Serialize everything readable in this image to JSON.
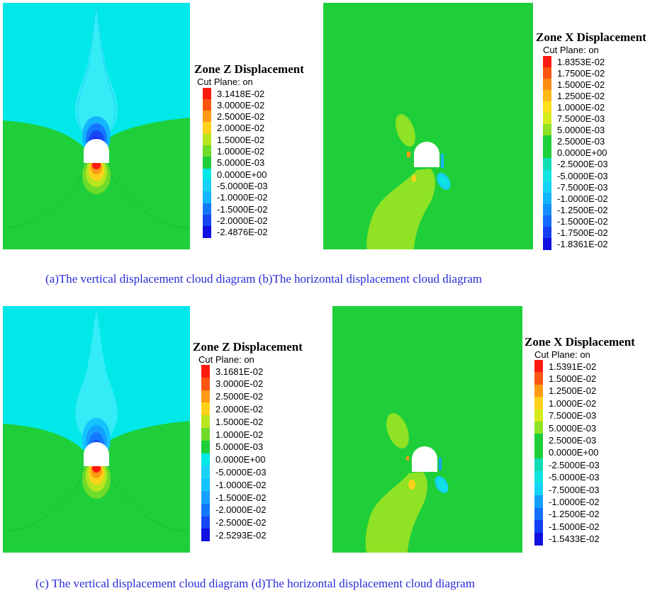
{
  "colors": {
    "cyan_bg": "#00e8e8",
    "light_cyan": "#33ecf6",
    "green": "#1fcf3a",
    "lime": "#7fdf26",
    "blue_mid": "#1e90ff",
    "blue_dark": "#1030e6",
    "red": "#ff1a10",
    "orange": "#ff7a10",
    "yellow": "#f5e000"
  },
  "panels": {
    "a": {
      "legend_title": "Zone Z Displacement",
      "legend_sub": "Cut Plane: on",
      "legend": [
        {
          "label": "3.1418E-02",
          "color": "#ff1a10"
        },
        {
          "label": "3.0000E-02",
          "color": "#ff5512"
        },
        {
          "label": "2.5000E-02",
          "color": "#ff9a14"
        },
        {
          "label": "2.0000E-02",
          "color": "#ffd11a"
        },
        {
          "label": "1.5000E-02",
          "color": "#b9e51e"
        },
        {
          "label": "1.0000E-02",
          "color": "#6fdb2a"
        },
        {
          "label": "5.0000E-03",
          "color": "#1fcf3a"
        },
        {
          "label": "0.0000E+00",
          "color": "#00e8e8"
        },
        {
          "label": "-5.0000E-03",
          "color": "#1ad2f5"
        },
        {
          "label": "-1.0000E-02",
          "color": "#14b4ff"
        },
        {
          "label": "-1.5000E-02",
          "color": "#1478ff"
        },
        {
          "label": "-2.0000E-02",
          "color": "#1446f5"
        },
        {
          "label": "-2.4876E-02",
          "color": "#1010e0"
        }
      ]
    },
    "b": {
      "legend_title": "Zone X Displacement",
      "legend_sub": "Cut Plane: on",
      "legend": [
        {
          "label": "1.8353E-02",
          "color": "#ff1a10"
        },
        {
          "label": "1.7500E-02",
          "color": "#ff5512"
        },
        {
          "label": "1.5000E-02",
          "color": "#ff8c14"
        },
        {
          "label": "1.2500E-02",
          "color": "#ffb816"
        },
        {
          "label": "1.0000E-02",
          "color": "#ffe01a"
        },
        {
          "label": "7.5000E-03",
          "color": "#d7ea1c"
        },
        {
          "label": "5.0000E-03",
          "color": "#8fe224"
        },
        {
          "label": "2.5000E-03",
          "color": "#1fcf3a"
        },
        {
          "label": "0.0000E+00",
          "color": "#1fcf3a"
        },
        {
          "label": "-2.5000E-03",
          "color": "#12dcb4"
        },
        {
          "label": "-5.0000E-03",
          "color": "#10e4e0"
        },
        {
          "label": "-7.5000E-03",
          "color": "#14d2f8"
        },
        {
          "label": "-1.0000E-02",
          "color": "#14b4ff"
        },
        {
          "label": "-1.2500E-02",
          "color": "#1490ff"
        },
        {
          "label": "-1.5000E-02",
          "color": "#146aff"
        },
        {
          "label": "-1.7500E-02",
          "color": "#1440f5"
        },
        {
          "label": "-1.8361E-02",
          "color": "#1010e0"
        }
      ]
    },
    "c": {
      "legend_title": "Zone Z Displacement",
      "legend_sub": "Cut Plane: on",
      "legend": [
        {
          "label": "3.1681E-02",
          "color": "#ff1a10"
        },
        {
          "label": "3.0000E-02",
          "color": "#ff5512"
        },
        {
          "label": "2.5000E-02",
          "color": "#ff9a14"
        },
        {
          "label": "2.0000E-02",
          "color": "#ffd11a"
        },
        {
          "label": "1.5000E-02",
          "color": "#b9e51e"
        },
        {
          "label": "1.0000E-02",
          "color": "#6fdb2a"
        },
        {
          "label": "5.0000E-03",
          "color": "#1fcf3a"
        },
        {
          "label": "0.0000E+00",
          "color": "#00e8e8"
        },
        {
          "label": "-5.0000E-03",
          "color": "#1ad2f5"
        },
        {
          "label": "-1.0000E-02",
          "color": "#14c4ff"
        },
        {
          "label": "-1.5000E-02",
          "color": "#14a0ff"
        },
        {
          "label": "-2.0000E-02",
          "color": "#1478ff"
        },
        {
          "label": "-2.5000E-02",
          "color": "#1446f5"
        },
        {
          "label": "-2.5293E-02",
          "color": "#1010e0"
        }
      ]
    },
    "d": {
      "legend_title": "Zone X Displacement",
      "legend_sub": "Cut Plane: on",
      "legend": [
        {
          "label": "1.5391E-02",
          "color": "#ff1a10"
        },
        {
          "label": "1.5000E-02",
          "color": "#ff5512"
        },
        {
          "label": "1.2500E-02",
          "color": "#ff9a14"
        },
        {
          "label": "1.0000E-02",
          "color": "#ffd11a"
        },
        {
          "label": "7.5000E-03",
          "color": "#d7ea1c"
        },
        {
          "label": "5.0000E-03",
          "color": "#8fe224"
        },
        {
          "label": "2.5000E-03",
          "color": "#1fcf3a"
        },
        {
          "label": "0.0000E+00",
          "color": "#1fcf3a"
        },
        {
          "label": "-2.5000E-03",
          "color": "#12dcb4"
        },
        {
          "label": "-5.0000E-03",
          "color": "#10e4e0"
        },
        {
          "label": "-7.5000E-03",
          "color": "#14d2f8"
        },
        {
          "label": "-1.0000E-02",
          "color": "#14a0ff"
        },
        {
          "label": "-1.2500E-02",
          "color": "#1470ff"
        },
        {
          "label": "-1.5000E-02",
          "color": "#1440f5"
        },
        {
          "label": "-1.5433E-02",
          "color": "#1010e0"
        }
      ]
    }
  },
  "captions": {
    "top": "(a)The vertical displacement cloud diagram (b)The horizontal displacement cloud diagram",
    "bottom": "(c) The vertical displacement cloud diagram (d)The horizontal displacement cloud diagram"
  }
}
